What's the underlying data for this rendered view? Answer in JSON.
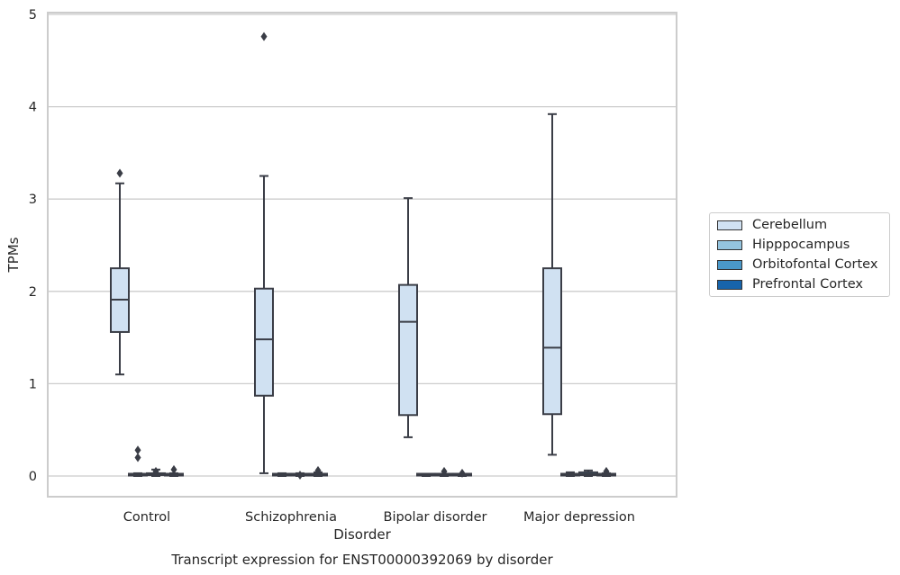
{
  "chart_data": {
    "type": "box",
    "title": "",
    "caption": "Transcript expression for ENST00000392069 by disorder",
    "xlabel": "Disorder",
    "ylabel": "TPMs",
    "ylim": [
      -0.22,
      5.03
    ],
    "yticks": [
      0,
      1,
      2,
      3,
      4,
      5
    ],
    "grid": "horizontal",
    "legend_position": "outside-right",
    "categories": [
      "Control",
      "Schizophrenia",
      "Bipolar disorder",
      "Major depression"
    ],
    "series": [
      {
        "name": "Cerebellum",
        "color": "#d0e1f2",
        "boxes": [
          {
            "category": "Control",
            "whisker_low": 1.1,
            "q1": 1.56,
            "median": 1.91,
            "q3": 2.25,
            "whisker_high": 3.17,
            "outliers": [
              3.28
            ]
          },
          {
            "category": "Schizophrenia",
            "whisker_low": 0.03,
            "q1": 0.87,
            "median": 1.48,
            "q3": 2.03,
            "whisker_high": 3.25,
            "outliers": [
              4.76
            ]
          },
          {
            "category": "Bipolar disorder",
            "whisker_low": 0.42,
            "q1": 0.66,
            "median": 1.67,
            "q3": 2.07,
            "whisker_high": 3.01,
            "outliers": []
          },
          {
            "category": "Major depression",
            "whisker_low": 0.23,
            "q1": 0.67,
            "median": 1.39,
            "q3": 2.25,
            "whisker_high": 3.92,
            "outliers": []
          }
        ]
      },
      {
        "name": "Hipppocampus",
        "color": "#94c4df",
        "boxes": [
          {
            "category": "Control",
            "whisker_low": 0.0,
            "q1": 0.005,
            "median": 0.01,
            "q3": 0.02,
            "whisker_high": 0.03,
            "outliers": [
              0.2,
              0.28
            ]
          },
          {
            "category": "Schizophrenia",
            "whisker_low": 0.0,
            "q1": 0.005,
            "median": 0.01,
            "q3": 0.02,
            "whisker_high": 0.03,
            "outliers": []
          },
          {
            "category": "Bipolar disorder",
            "whisker_low": 0.0,
            "q1": 0.005,
            "median": 0.01,
            "q3": 0.02,
            "whisker_high": 0.02,
            "outliers": []
          },
          {
            "category": "Major depression",
            "whisker_low": 0.0,
            "q1": 0.005,
            "median": 0.01,
            "q3": 0.02,
            "whisker_high": 0.04,
            "outliers": []
          }
        ]
      },
      {
        "name": "Orbitofontal Cortex",
        "color": "#4a98c9",
        "boxes": [
          {
            "category": "Control",
            "whisker_low": 0.0,
            "q1": 0.01,
            "median": 0.02,
            "q3": 0.03,
            "whisker_high": 0.07,
            "outliers": [
              0.05
            ]
          },
          {
            "category": "Schizophrenia",
            "whisker_low": 0.0,
            "q1": 0.005,
            "median": 0.01,
            "q3": 0.02,
            "whisker_high": 0.03,
            "outliers": [
              0.01
            ]
          },
          {
            "category": "Bipolar disorder",
            "whisker_low": 0.0,
            "q1": 0.005,
            "median": 0.01,
            "q3": 0.02,
            "whisker_high": 0.02,
            "outliers": [
              0.05
            ]
          },
          {
            "category": "Major depression",
            "whisker_low": 0.0,
            "q1": 0.01,
            "median": 0.02,
            "q3": 0.04,
            "whisker_high": 0.06,
            "outliers": []
          }
        ]
      },
      {
        "name": "Prefrontal Cortex",
        "color": "#1764ab",
        "boxes": [
          {
            "category": "Control",
            "whisker_low": 0.0,
            "q1": 0.005,
            "median": 0.01,
            "q3": 0.02,
            "whisker_high": 0.03,
            "outliers": [
              0.07
            ]
          },
          {
            "category": "Schizophrenia",
            "whisker_low": 0.0,
            "q1": 0.005,
            "median": 0.01,
            "q3": 0.02,
            "whisker_high": 0.04,
            "outliers": [
              0.06
            ]
          },
          {
            "category": "Bipolar disorder",
            "whisker_low": 0.0,
            "q1": 0.005,
            "median": 0.01,
            "q3": 0.01,
            "whisker_high": 0.02,
            "outliers": [
              0.03
            ]
          },
          {
            "category": "Major depression",
            "whisker_low": 0.0,
            "q1": 0.005,
            "median": 0.01,
            "q3": 0.02,
            "whisker_high": 0.03,
            "outliers": [
              0.05
            ]
          }
        ]
      }
    ]
  }
}
